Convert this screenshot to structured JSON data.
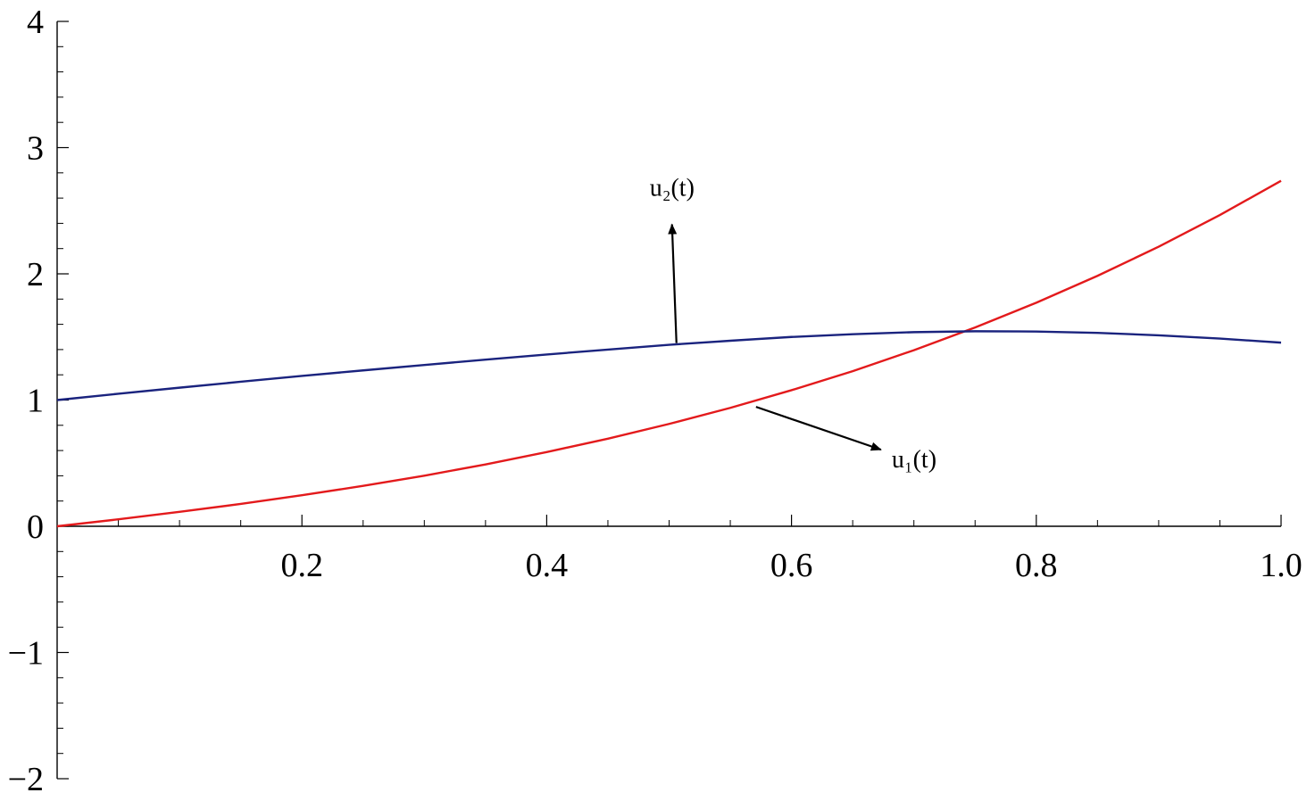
{
  "chart_data": {
    "type": "line",
    "title": "",
    "xlabel": "",
    "ylabel": "",
    "xlim": [
      0,
      1.0
    ],
    "ylim": [
      -2,
      4
    ],
    "grid": false,
    "x_ticks": [
      "0.2",
      "0.4",
      "0.6",
      "0.8",
      "1.0"
    ],
    "y_ticks": [
      "−2",
      "−1",
      "0",
      "1",
      "2",
      "3",
      "4"
    ],
    "x": [
      0.0,
      0.05,
      0.1,
      0.15,
      0.2,
      0.25,
      0.3,
      0.35,
      0.4,
      0.45,
      0.5,
      0.55,
      0.6,
      0.65,
      0.7,
      0.75,
      0.8,
      0.85,
      0.9,
      0.95,
      1.0
    ],
    "series": [
      {
        "name": "u₁(t)",
        "color": "#e31a1c",
        "values": [
          0.0,
          0.055,
          0.114,
          0.177,
          0.246,
          0.32,
          0.401,
          0.49,
          0.588,
          0.694,
          0.811,
          0.938,
          1.078,
          1.229,
          1.395,
          1.575,
          1.771,
          1.984,
          2.215,
          2.466,
          2.737
        ]
      },
      {
        "name": "u₂(t)",
        "color": "#1a237e",
        "values": [
          1.0,
          1.05,
          1.098,
          1.145,
          1.191,
          1.235,
          1.278,
          1.32,
          1.361,
          1.4,
          1.438,
          1.47,
          1.5,
          1.522,
          1.538,
          1.545,
          1.543,
          1.532,
          1.513,
          1.487,
          1.455
        ]
      }
    ],
    "annotations": [
      {
        "text": "u₂(t)",
        "series": "u₂(t)",
        "x": 0.506,
        "y": 1.452
      },
      {
        "text": "u₁(t)",
        "series": "u₁(t)",
        "x": 0.571,
        "y": 0.946
      }
    ]
  }
}
